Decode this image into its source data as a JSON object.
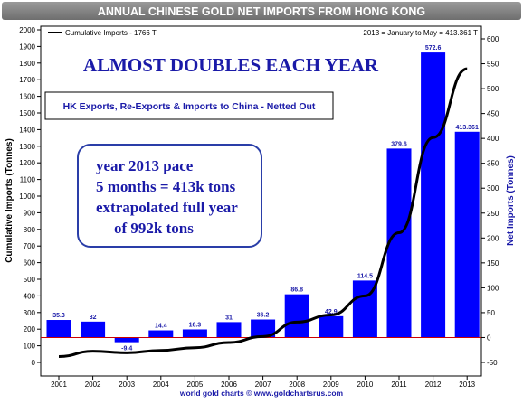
{
  "chart_data": {
    "type": "bar",
    "title": "ANNUAL CHINESE GOLD NET IMPORTS FROM HONG KONG",
    "headline": "ALMOST DOUBLES EACH YEAR",
    "subtitle": "HK Exports, Re-Exports & Imports to China - Netted Out",
    "annotation": [
      "year 2013 pace",
      "5 months = 413k tons",
      "extrapolated full year",
      "of 992k tons"
    ],
    "legend_label": "Cumulative Imports - 1766 T",
    "note_right": "2013 = January to May = 413.361 T",
    "footer": "world gold charts © www.goldchartsrus.com",
    "ylabel_left": "Cumulative Imports (Tonnes)",
    "ylabel_right": "Net Imports (Tonnes)",
    "categories": [
      "2001",
      "2002",
      "2003",
      "2004",
      "2005",
      "2006",
      "2007",
      "2008",
      "2009",
      "2010",
      "2011",
      "2012",
      "2013"
    ],
    "bar_series": {
      "name": "Net Imports (Tonnes)",
      "values": [
        35.3,
        32,
        -9.4,
        14.4,
        16.3,
        31,
        36.2,
        86.8,
        42.9,
        114.5,
        379.6,
        572.6,
        413.361
      ],
      "labels": [
        "35.3",
        "32",
        "-9.4",
        "14.4",
        "16.3",
        "31",
        "36.2",
        "86.8",
        "42.9",
        "114.5",
        "379.6",
        "572.6",
        "413.361"
      ],
      "axis": "right"
    },
    "line_series": {
      "name": "Cumulative Imports",
      "values": [
        35.3,
        67.3,
        57.9,
        72.3,
        88.6,
        119.6,
        155.8,
        242.6,
        285.5,
        400,
        779.6,
        1352.2,
        1765.6
      ],
      "axis": "left"
    },
    "left_axis": {
      "min": 0,
      "max": 2000,
      "ticks": [
        0,
        100,
        200,
        300,
        400,
        500,
        600,
        700,
        800,
        900,
        1000,
        1100,
        1200,
        1300,
        1400,
        1500,
        1600,
        1700,
        1800,
        1900,
        2000
      ]
    },
    "right_axis": {
      "min": -50,
      "max": 600,
      "ticks": [
        -50,
        0,
        50,
        100,
        150,
        200,
        250,
        300,
        350,
        400,
        450,
        500,
        550,
        600
      ]
    },
    "colors": {
      "bar": "#0000ff",
      "line": "#000000",
      "zero_line": "#cc0000",
      "title_bg": "#7f7f7f",
      "headline": "#1a1aa8"
    },
    "grid": false
  }
}
